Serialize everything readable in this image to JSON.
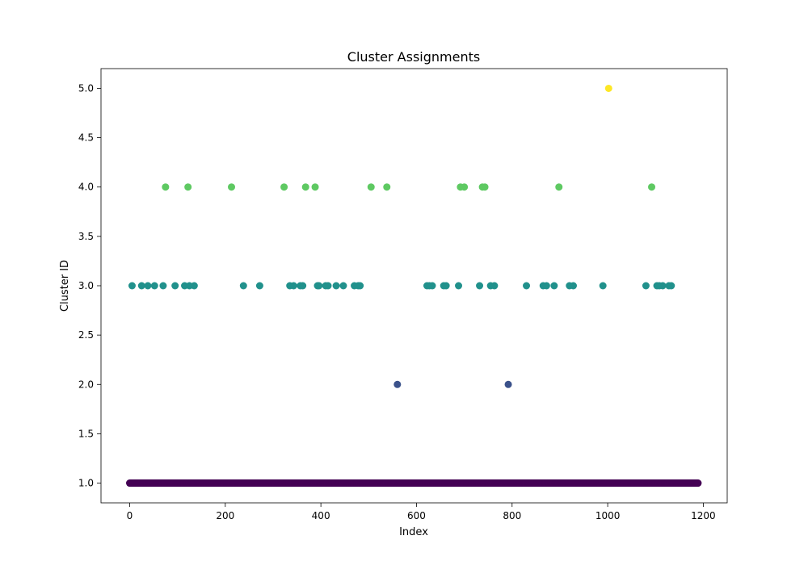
{
  "chart_data": {
    "type": "scatter",
    "title": "Cluster Assignments",
    "xlabel": "Index",
    "ylabel": "Cluster ID",
    "xlim": [
      -60,
      1250
    ],
    "ylim": [
      0.8,
      5.2
    ],
    "xticks": [
      0,
      200,
      400,
      600,
      800,
      1000,
      1200
    ],
    "yticks": [
      1.0,
      1.5,
      2.0,
      2.5,
      3.0,
      3.5,
      4.0,
      4.5,
      5.0
    ],
    "xtick_labels": [
      "0",
      "200",
      "400",
      "600",
      "800",
      "1000",
      "1200"
    ],
    "ytick_labels": [
      "1.0",
      "1.5",
      "2.0",
      "2.5",
      "3.0",
      "3.5",
      "4.0",
      "4.5",
      "5.0"
    ],
    "grid": false,
    "n_points": 1190,
    "baseline_value": 1,
    "colormap": "viridis",
    "cluster_colors": {
      "1": "#440154",
      "2": "#3b528b",
      "3": "#21918c",
      "4": "#5ec962",
      "5": "#fde725"
    },
    "points": [
      {
        "x": 5,
        "y": 3
      },
      {
        "x": 25,
        "y": 3
      },
      {
        "x": 38,
        "y": 3
      },
      {
        "x": 52,
        "y": 3
      },
      {
        "x": 70,
        "y": 3
      },
      {
        "x": 95,
        "y": 3
      },
      {
        "x": 115,
        "y": 3
      },
      {
        "x": 125,
        "y": 3
      },
      {
        "x": 135,
        "y": 3
      },
      {
        "x": 238,
        "y": 3
      },
      {
        "x": 272,
        "y": 3
      },
      {
        "x": 335,
        "y": 3
      },
      {
        "x": 343,
        "y": 3
      },
      {
        "x": 357,
        "y": 3
      },
      {
        "x": 362,
        "y": 3
      },
      {
        "x": 393,
        "y": 3
      },
      {
        "x": 396,
        "y": 3
      },
      {
        "x": 410,
        "y": 3
      },
      {
        "x": 415,
        "y": 3
      },
      {
        "x": 432,
        "y": 3
      },
      {
        "x": 447,
        "y": 3
      },
      {
        "x": 470,
        "y": 3
      },
      {
        "x": 478,
        "y": 3
      },
      {
        "x": 482,
        "y": 3
      },
      {
        "x": 622,
        "y": 3
      },
      {
        "x": 627,
        "y": 3
      },
      {
        "x": 633,
        "y": 3
      },
      {
        "x": 657,
        "y": 3
      },
      {
        "x": 662,
        "y": 3
      },
      {
        "x": 688,
        "y": 3
      },
      {
        "x": 732,
        "y": 3
      },
      {
        "x": 755,
        "y": 3
      },
      {
        "x": 763,
        "y": 3
      },
      {
        "x": 830,
        "y": 3
      },
      {
        "x": 865,
        "y": 3
      },
      {
        "x": 872,
        "y": 3
      },
      {
        "x": 888,
        "y": 3
      },
      {
        "x": 920,
        "y": 3
      },
      {
        "x": 928,
        "y": 3
      },
      {
        "x": 990,
        "y": 3
      },
      {
        "x": 1080,
        "y": 3
      },
      {
        "x": 1103,
        "y": 3
      },
      {
        "x": 1108,
        "y": 3
      },
      {
        "x": 1115,
        "y": 3
      },
      {
        "x": 1128,
        "y": 3
      },
      {
        "x": 1133,
        "y": 3
      },
      {
        "x": 75,
        "y": 4
      },
      {
        "x": 122,
        "y": 4
      },
      {
        "x": 213,
        "y": 4
      },
      {
        "x": 323,
        "y": 4
      },
      {
        "x": 368,
        "y": 4
      },
      {
        "x": 388,
        "y": 4
      },
      {
        "x": 505,
        "y": 4
      },
      {
        "x": 538,
        "y": 4
      },
      {
        "x": 692,
        "y": 4
      },
      {
        "x": 700,
        "y": 4
      },
      {
        "x": 738,
        "y": 4
      },
      {
        "x": 743,
        "y": 4
      },
      {
        "x": 898,
        "y": 4
      },
      {
        "x": 1092,
        "y": 4
      },
      {
        "x": 560,
        "y": 2
      },
      {
        "x": 792,
        "y": 2
      },
      {
        "x": 1002,
        "y": 5
      }
    ]
  }
}
